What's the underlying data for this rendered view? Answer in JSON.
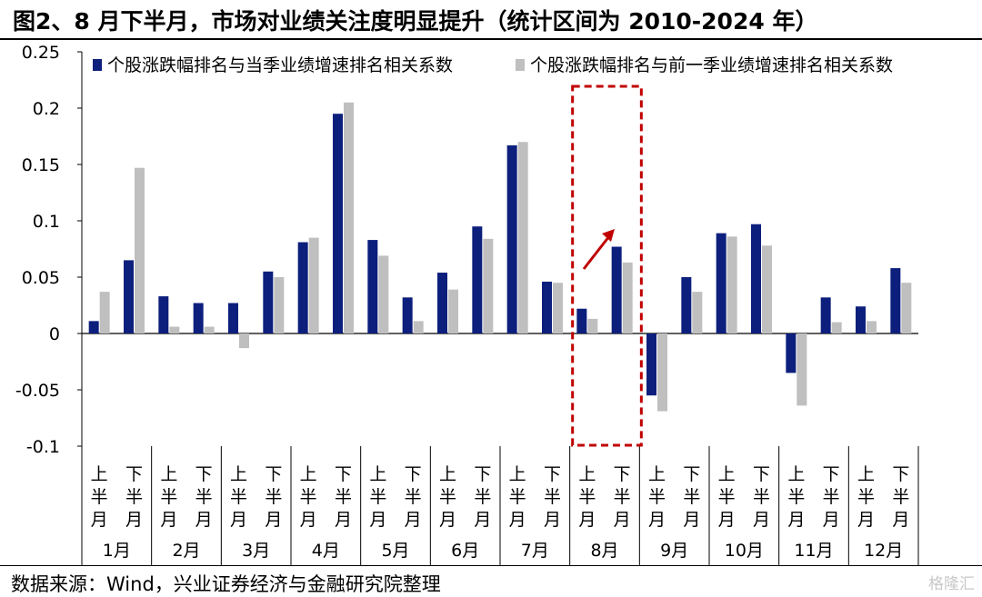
{
  "title": "图2、8 月下半月，市场对业绩关注度明显提升（统计区间为 2010-2024 年）",
  "source": "数据来源：Wind，兴业证券经济与金融研究院整理",
  "watermark": "格隆汇",
  "chart_data": {
    "type": "bar",
    "y_ticks": [
      "0.25",
      "0.2",
      "0.15",
      "0.1",
      "0.05",
      "0",
      "-0.05",
      "-0.1"
    ],
    "ylim": [
      -0.1,
      0.25
    ],
    "half_labels": [
      "上半月",
      "下半月"
    ],
    "months": [
      "1月",
      "2月",
      "3月",
      "4月",
      "5月",
      "6月",
      "7月",
      "8月",
      "9月",
      "10月",
      "11月",
      "12月"
    ],
    "series": [
      {
        "name": "个股涨跌幅排名与当季业绩增速排名相关系数",
        "color": "#0d1f7c",
        "values": [
          0.011,
          0.065,
          0.033,
          0.027,
          0.027,
          0.055,
          0.081,
          0.195,
          0.083,
          0.032,
          0.054,
          0.095,
          0.167,
          0.046,
          0.022,
          0.077,
          -0.055,
          0.05,
          0.089,
          0.097,
          -0.035,
          0.032,
          0.024,
          0.058
        ]
      },
      {
        "name": "个股涨跌幅排名与前一季业绩增速排名相关系数",
        "color": "#bfbfbf",
        "values": [
          0.037,
          0.147,
          0.006,
          0.006,
          -0.013,
          0.05,
          0.085,
          0.205,
          0.069,
          0.011,
          0.039,
          0.084,
          0.17,
          0.045,
          0.013,
          0.063,
          -0.069,
          0.037,
          0.086,
          0.078,
          -0.064,
          0.01,
          0.011,
          0.045
        ]
      }
    ],
    "highlight_month": "8月",
    "highlight_color": "#c00000",
    "arrow_color": "#c00000",
    "grid": false,
    "legend_position": "top"
  }
}
